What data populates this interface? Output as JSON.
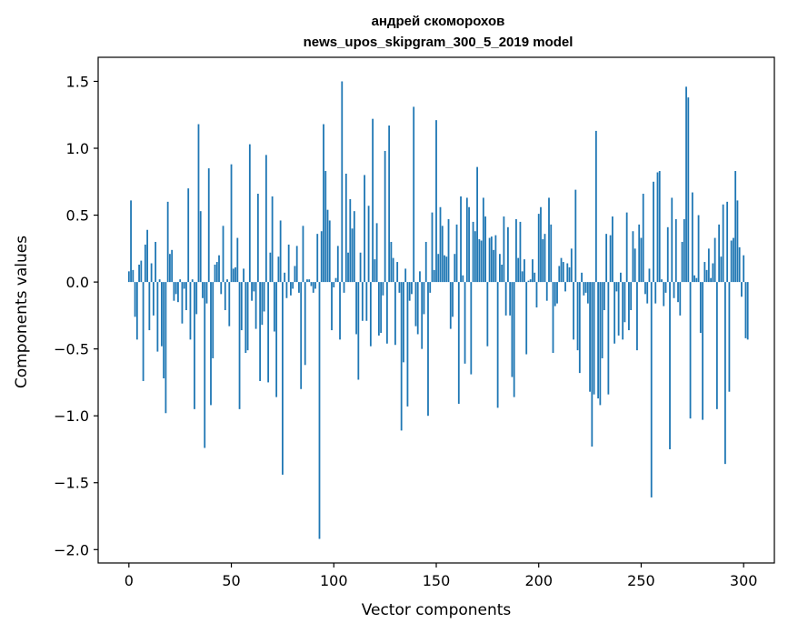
{
  "chart_data": {
    "type": "bar",
    "title": [
      "андрей скоморохов",
      "news_upos_skipgram_300_5_2019 model"
    ],
    "xlabel": "Vector components",
    "ylabel": "Components values",
    "xlim": [
      -15,
      315
    ],
    "ylim": [
      -2.1,
      1.68
    ],
    "xticks": [
      0,
      50,
      100,
      150,
      200,
      250,
      300
    ],
    "xtick_labels": [
      "0",
      "50",
      "100",
      "150",
      "200",
      "250",
      "300"
    ],
    "yticks": [
      1.5,
      1.0,
      0.5,
      0.0,
      -0.5,
      -1.0,
      -1.5,
      -2.0
    ],
    "ytick_labels": [
      "1.5",
      "1.0",
      "0.5",
      "0.0",
      "−0.5",
      "−1.0",
      "−1.5",
      "−2.0"
    ],
    "bar_color": "#1f77b4",
    "grid": false,
    "values": [
      0.08,
      0.61,
      0.09,
      -0.26,
      -0.43,
      0.13,
      0.16,
      -0.74,
      0.28,
      0.39,
      -0.36,
      0.14,
      -0.25,
      0.3,
      -0.52,
      0.02,
      -0.48,
      -0.72,
      -0.98,
      0.6,
      0.21,
      0.24,
      -0.14,
      -0.09,
      -0.15,
      0.02,
      -0.31,
      -0.05,
      -0.21,
      0.7,
      -0.43,
      0.02,
      -0.95,
      -0.24,
      1.18,
      0.53,
      -0.12,
      -1.24,
      -0.16,
      0.85,
      -0.92,
      -0.57,
      0.13,
      0.15,
      0.2,
      -0.09,
      0.42,
      -0.21,
      0.02,
      -0.33,
      0.88,
      0.1,
      0.11,
      0.33,
      -0.95,
      -0.36,
      0.1,
      -0.53,
      -0.51,
      1.03,
      -0.14,
      -0.07,
      -0.35,
      0.66,
      -0.74,
      -0.32,
      -0.22,
      0.95,
      -0.75,
      0.22,
      0.64,
      -0.37,
      -0.86,
      0.19,
      0.46,
      -1.44,
      0.07,
      -0.12,
      0.28,
      -0.1,
      -0.05,
      0.12,
      0.27,
      -0.08,
      -0.8,
      0.42,
      -0.62,
      0.02,
      0.02,
      -0.03,
      -0.08,
      -0.05,
      0.36,
      -1.92,
      0.38,
      1.18,
      0.83,
      0.54,
      0.46,
      -0.36,
      -0.04,
      0.03,
      0.27,
      -0.43,
      1.5,
      -0.08,
      0.81,
      0.22,
      0.62,
      0.4,
      0.53,
      -0.39,
      -0.73,
      0.22,
      -0.29,
      0.8,
      -0.29,
      0.57,
      -0.48,
      1.22,
      0.17,
      0.44,
      -0.4,
      -0.38,
      -0.1,
      0.98,
      -0.46,
      1.17,
      0.3,
      0.18,
      -0.47,
      0.15,
      -0.08,
      -1.11,
      -0.6,
      0.1,
      -0.93,
      -0.14,
      -0.09,
      1.31,
      -0.33,
      -0.39,
      0.08,
      -0.5,
      -0.24,
      0.3,
      -1.0,
      -0.08,
      0.52,
      0.09,
      1.21,
      0.21,
      0.56,
      0.42,
      0.2,
      0.19,
      0.47,
      -0.35,
      -0.26,
      0.21,
      0.43,
      -0.91,
      0.64,
      0.05,
      -0.61,
      0.63,
      0.56,
      -0.69,
      0.45,
      0.38,
      0.86,
      0.32,
      0.31,
      0.63,
      0.49,
      -0.48,
      0.33,
      0.34,
      0.24,
      0.35,
      -0.94,
      0.21,
      0.13,
      0.49,
      -0.25,
      0.41,
      -0.25,
      -0.71,
      -0.86,
      0.47,
      0.18,
      0.45,
      0.08,
      0.17,
      -0.54,
      0.01,
      0.02,
      0.17,
      0.07,
      -0.19,
      0.51,
      0.56,
      0.32,
      0.36,
      -0.14,
      0.63,
      0.43,
      -0.53,
      -0.18,
      -0.16,
      0.12,
      0.18,
      0.15,
      -0.07,
      0.14,
      0.11,
      0.25,
      -0.43,
      0.69,
      -0.51,
      -0.68,
      0.07,
      -0.1,
      -0.08,
      -0.16,
      -0.82,
      -1.23,
      -0.84,
      1.13,
      -0.87,
      -0.92,
      -0.57,
      -0.21,
      0.36,
      -0.84,
      0.35,
      0.49,
      -0.46,
      -0.07,
      -0.4,
      0.07,
      -0.43,
      -0.3,
      0.52,
      -0.36,
      -0.21,
      0.38,
      0.25,
      -0.51,
      0.43,
      0.33,
      0.66,
      -0.09,
      -0.16,
      0.1,
      -1.61,
      0.75,
      -0.16,
      0.82,
      0.83,
      0.02,
      -0.18,
      -0.08,
      0.41,
      -1.25,
      0.63,
      -0.12,
      0.47,
      -0.15,
      -0.25,
      0.3,
      0.47,
      1.46,
      1.38,
      -1.02,
      0.67,
      0.05,
      0.03,
      0.5,
      -0.38,
      -1.03,
      0.15,
      0.09,
      0.25,
      0.03,
      0.14,
      0.33,
      -0.95,
      0.43,
      0.19,
      0.58,
      -1.36,
      0.6,
      -0.82,
      0.31,
      0.33,
      0.83,
      0.61,
      0.26,
      -0.11,
      0.2,
      -0.42,
      -0.43
    ]
  }
}
